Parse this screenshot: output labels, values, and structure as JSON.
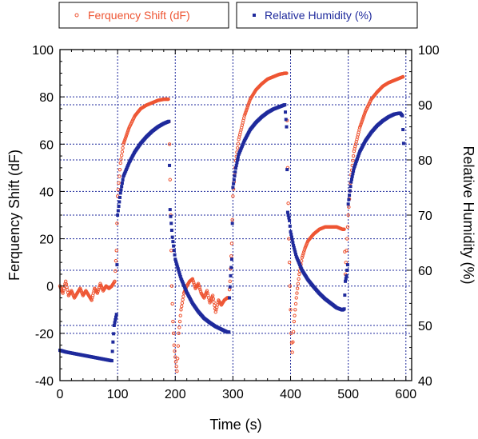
{
  "chart_data": {
    "type": "scatter",
    "title": "",
    "xlabel": "Time (s)",
    "ylabel": "Ferquency Shift (dF)",
    "y2label": "Relative Humidity (%)",
    "xlim": [
      0,
      610
    ],
    "ylim": [
      -40,
      100
    ],
    "y2lim": [
      40,
      100
    ],
    "x_ticks": [
      0,
      100,
      200,
      300,
      400,
      500,
      600
    ],
    "y_ticks": [
      -40,
      -20,
      0,
      20,
      40,
      60,
      80,
      100
    ],
    "y2_ticks": [
      40,
      50,
      60,
      70,
      80,
      90,
      100
    ],
    "grid": "dotted, major ticks",
    "legend_placement": "top, outside plot",
    "colors": {
      "freq": "#ee5533",
      "rh": "#1f2a9c"
    },
    "series": [
      {
        "name": "Ferquency Shift (dF)",
        "axis": "left",
        "marker": "open-circle",
        "points": [
          [
            0,
            0
          ],
          [
            5,
            -3
          ],
          [
            10,
            2
          ],
          [
            15,
            -4
          ],
          [
            20,
            -2
          ],
          [
            25,
            -5
          ],
          [
            30,
            -3
          ],
          [
            35,
            -1
          ],
          [
            40,
            -4
          ],
          [
            45,
            -2
          ],
          [
            50,
            -4
          ],
          [
            55,
            -6
          ],
          [
            60,
            -1
          ],
          [
            65,
            -3
          ],
          [
            70,
            1
          ],
          [
            75,
            -2
          ],
          [
            80,
            0
          ],
          [
            85,
            -1
          ],
          [
            90,
            0
          ],
          [
            95,
            2
          ],
          [
            98,
            15
          ],
          [
            100,
            38
          ],
          [
            105,
            52
          ],
          [
            110,
            60
          ],
          [
            120,
            67
          ],
          [
            130,
            72
          ],
          [
            140,
            75
          ],
          [
            150,
            76.5
          ],
          [
            160,
            77.5
          ],
          [
            170,
            78.5
          ],
          [
            180,
            79
          ],
          [
            188,
            79
          ],
          [
            190,
            60
          ],
          [
            192,
            30
          ],
          [
            194,
            0
          ],
          [
            196,
            -15
          ],
          [
            198,
            -25
          ],
          [
            200,
            -30
          ],
          [
            203,
            -36
          ],
          [
            206,
            -20
          ],
          [
            210,
            -10
          ],
          [
            215,
            -3
          ],
          [
            220,
            0
          ],
          [
            225,
            2
          ],
          [
            230,
            3
          ],
          [
            235,
            -1
          ],
          [
            240,
            1
          ],
          [
            245,
            -3
          ],
          [
            250,
            -5
          ],
          [
            255,
            -2
          ],
          [
            260,
            -7
          ],
          [
            265,
            -4
          ],
          [
            270,
            -11
          ],
          [
            275,
            -6
          ],
          [
            280,
            -8
          ],
          [
            285,
            -6
          ],
          [
            290,
            -5
          ],
          [
            293,
            -5
          ],
          [
            295,
            2
          ],
          [
            298,
            18
          ],
          [
            300,
            38
          ],
          [
            305,
            53
          ],
          [
            310,
            62
          ],
          [
            320,
            72
          ],
          [
            330,
            79
          ],
          [
            340,
            83
          ],
          [
            350,
            85.5
          ],
          [
            360,
            87.5
          ],
          [
            370,
            88.5
          ],
          [
            380,
            89.5
          ],
          [
            390,
            90
          ],
          [
            393,
            90
          ],
          [
            395,
            50
          ],
          [
            397,
            20
          ],
          [
            399,
            0
          ],
          [
            401,
            -20
          ],
          [
            403,
            -28
          ],
          [
            406,
            -15
          ],
          [
            410,
            -5
          ],
          [
            415,
            5
          ],
          [
            420,
            12
          ],
          [
            425,
            16
          ],
          [
            430,
            19
          ],
          [
            440,
            22
          ],
          [
            450,
            24
          ],
          [
            460,
            25
          ],
          [
            470,
            25
          ],
          [
            480,
            25
          ],
          [
            490,
            24
          ],
          [
            493,
            24
          ],
          [
            495,
            5
          ],
          [
            497,
            15
          ],
          [
            500,
            30
          ],
          [
            505,
            47
          ],
          [
            510,
            57
          ],
          [
            520,
            67
          ],
          [
            530,
            74
          ],
          [
            540,
            79
          ],
          [
            550,
            82
          ],
          [
            560,
            84.5
          ],
          [
            570,
            86
          ],
          [
            580,
            87
          ],
          [
            590,
            88
          ],
          [
            595,
            88.5
          ]
        ]
      },
      {
        "name": "Relative Humidity (%)",
        "axis": "right",
        "marker": "square",
        "points": [
          [
            0,
            45.5
          ],
          [
            10,
            45.2
          ],
          [
            20,
            45
          ],
          [
            30,
            44.8
          ],
          [
            40,
            44.6
          ],
          [
            50,
            44.4
          ],
          [
            60,
            44.2
          ],
          [
            70,
            44
          ],
          [
            80,
            43.8
          ],
          [
            90,
            43.6
          ],
          [
            92,
            47
          ],
          [
            94,
            50
          ],
          [
            96,
            51
          ],
          [
            98,
            52
          ],
          [
            100,
            70
          ],
          [
            105,
            74
          ],
          [
            110,
            77
          ],
          [
            120,
            79.5
          ],
          [
            130,
            81.5
          ],
          [
            140,
            83
          ],
          [
            150,
            84.2
          ],
          [
            160,
            85.2
          ],
          [
            170,
            86
          ],
          [
            180,
            86.6
          ],
          [
            189,
            87
          ],
          [
            191,
            71
          ],
          [
            195,
            66
          ],
          [
            200,
            62
          ],
          [
            210,
            58.5
          ],
          [
            220,
            56
          ],
          [
            230,
            54
          ],
          [
            240,
            52.5
          ],
          [
            250,
            51.3
          ],
          [
            260,
            50.5
          ],
          [
            270,
            49.8
          ],
          [
            280,
            49.3
          ],
          [
            290,
            48.8
          ],
          [
            293,
            48.8
          ],
          [
            294,
            55
          ],
          [
            296,
            59
          ],
          [
            298,
            62
          ],
          [
            300,
            75
          ],
          [
            305,
            78.5
          ],
          [
            310,
            81
          ],
          [
            320,
            83.5
          ],
          [
            330,
            85.5
          ],
          [
            340,
            86.8
          ],
          [
            350,
            87.8
          ],
          [
            360,
            88.6
          ],
          [
            370,
            89.2
          ],
          [
            380,
            89.6
          ],
          [
            390,
            90
          ],
          [
            393,
            86
          ],
          [
            395,
            70.5
          ],
          [
            398,
            69
          ],
          [
            400,
            67
          ],
          [
            405,
            64.5
          ],
          [
            410,
            62.5
          ],
          [
            420,
            60
          ],
          [
            430,
            58.3
          ],
          [
            440,
            57
          ],
          [
            450,
            55.8
          ],
          [
            460,
            54.8
          ],
          [
            470,
            54
          ],
          [
            480,
            53.2
          ],
          [
            490,
            52.8
          ],
          [
            493,
            53
          ],
          [
            495,
            58
          ],
          [
            497,
            59
          ],
          [
            499,
            61
          ],
          [
            500,
            72
          ],
          [
            505,
            76
          ],
          [
            510,
            78.5
          ],
          [
            520,
            81.5
          ],
          [
            530,
            83.5
          ],
          [
            540,
            85
          ],
          [
            550,
            86.2
          ],
          [
            560,
            87.1
          ],
          [
            570,
            87.8
          ],
          [
            580,
            88.3
          ],
          [
            590,
            88.5
          ],
          [
            594,
            88
          ],
          [
            596,
            83
          ]
        ]
      }
    ]
  }
}
